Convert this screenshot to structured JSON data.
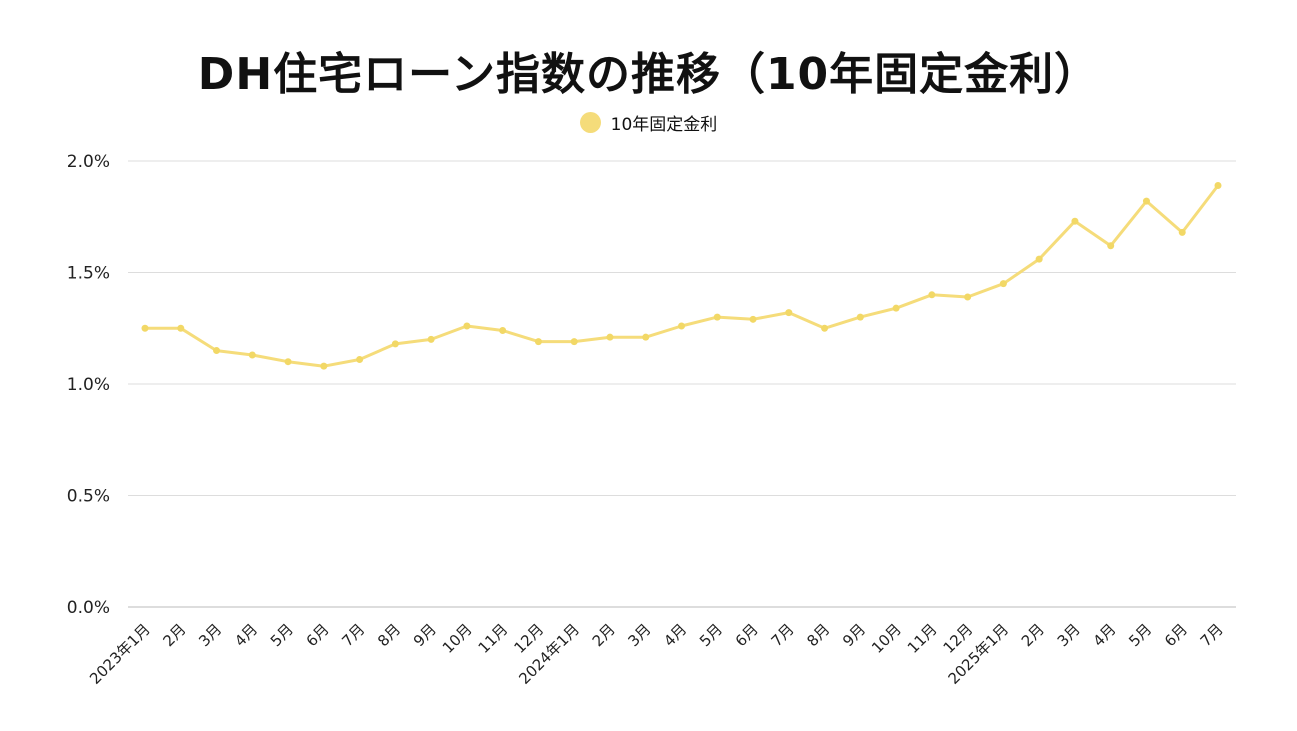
{
  "chart_data": {
    "type": "line",
    "title": "DH住宅ローン指数の推移（10年固定金利）",
    "xlabel": "",
    "ylabel": "",
    "categories": [
      "2023年1月",
      "2月",
      "3月",
      "4月",
      "5月",
      "6月",
      "7月",
      "8月",
      "9月",
      "10月",
      "11月",
      "12月",
      "2024年1月",
      "2月",
      "3月",
      "4月",
      "5月",
      "6月",
      "7月",
      "8月",
      "9月",
      "10月",
      "11月",
      "12月",
      "2025年1月",
      "2月",
      "3月",
      "4月",
      "5月",
      "6月",
      "7月"
    ],
    "series": [
      {
        "name": "10年固定金利",
        "color": "#f5dc7a",
        "values": [
          1.25,
          1.25,
          1.15,
          1.13,
          1.1,
          1.08,
          1.11,
          1.18,
          1.2,
          1.26,
          1.24,
          1.19,
          1.19,
          1.21,
          1.21,
          1.26,
          1.3,
          1.29,
          1.32,
          1.25,
          1.3,
          1.34,
          1.4,
          1.39,
          1.45,
          1.56,
          1.73,
          1.62,
          1.82,
          1.68,
          1.89
        ]
      }
    ],
    "y_ticks": [
      "0.0%",
      "0.5%",
      "1.0%",
      "1.5%",
      "2.0%"
    ],
    "y_tick_values": [
      0,
      0.5,
      1.0,
      1.5,
      2.0
    ],
    "ylim": [
      0,
      2.0
    ],
    "grid": true,
    "legend_position": "top-center"
  },
  "colors": {
    "line": "#f5dc7a",
    "marker": "#f2d866",
    "grid": "#dddddd"
  }
}
